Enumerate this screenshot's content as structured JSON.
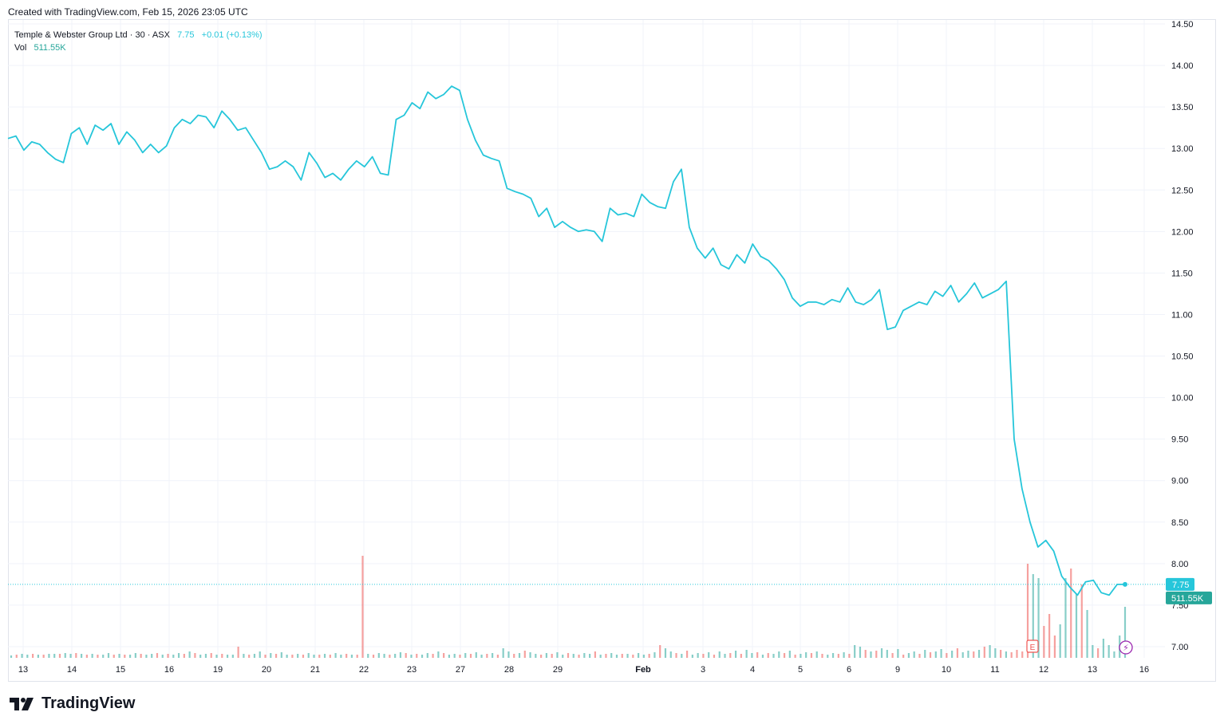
{
  "header": {
    "created": "Created with TradingView.com, Feb 15, 2026 23:05 UTC"
  },
  "legend": {
    "symbol": "Temple & Webster Group Ltd",
    "interval": "30",
    "exchange": "ASX",
    "price": "7.75",
    "change": "+0.01",
    "change_pct": "(+0.13%)",
    "vol_label": "Vol",
    "vol_value": "511.55K"
  },
  "branding": {
    "name": "TradingView"
  },
  "colors": {
    "line": "#26c6da",
    "vol_up": "#26a69a",
    "vol_down": "#ef5350",
    "grid": "#f0f3fa"
  },
  "price_label": "7.75",
  "volume_label": "511.55K",
  "chart_data": {
    "type": "line",
    "title": "Temple & Webster Group Ltd · 30 · ASX",
    "ylabel": "",
    "xlabel": "",
    "ylim": [
      6.9,
      14.5
    ],
    "y_ticks": [
      "14.50",
      "14.00",
      "13.50",
      "13.00",
      "12.50",
      "12.00",
      "11.50",
      "11.00",
      "10.50",
      "10.00",
      "9.50",
      "9.00",
      "8.50",
      "8.00",
      "7.50",
      "7.00"
    ],
    "x_ticks": [
      "13",
      "14",
      "15",
      "16",
      "19",
      "20",
      "21",
      "22",
      "23",
      "27",
      "28",
      "29",
      "Feb",
      "3",
      "4",
      "5",
      "6",
      "9",
      "10",
      "11",
      "12",
      "13",
      "16"
    ],
    "series": [
      {
        "values": [
          13.12,
          13.15,
          12.98,
          13.08,
          13.05,
          12.95,
          12.87,
          12.83,
          13.18,
          13.25,
          13.05,
          13.28,
          13.22,
          13.3,
          13.05,
          13.2,
          13.1,
          12.95,
          13.05,
          12.95,
          13.03,
          13.25,
          13.35,
          13.3,
          13.4,
          13.38,
          13.25,
          13.45,
          13.35,
          13.22,
          13.25,
          13.1,
          12.95,
          12.75,
          12.78,
          12.85,
          12.78,
          12.62,
          12.95,
          12.82,
          12.65,
          12.7,
          12.62,
          12.75,
          12.85,
          12.78,
          12.9,
          12.7,
          12.68,
          13.35,
          13.4,
          13.55,
          13.48,
          13.68,
          13.6,
          13.65,
          13.75,
          13.7,
          13.35,
          13.1,
          12.92,
          12.88,
          12.85,
          12.52,
          12.48,
          12.45,
          12.4,
          12.18,
          12.28,
          12.05,
          12.12,
          12.05,
          12.0,
          12.02,
          12.0,
          11.88,
          12.28,
          12.2,
          12.22,
          12.18,
          12.45,
          12.35,
          12.3,
          12.28,
          12.6,
          12.75,
          12.05,
          11.8,
          11.68,
          11.8,
          11.6,
          11.55,
          11.72,
          11.62,
          11.85,
          11.7,
          11.65,
          11.55,
          11.42,
          11.2,
          11.1,
          11.15,
          11.15,
          11.12,
          11.18,
          11.15,
          11.32,
          11.15,
          11.12,
          11.18,
          11.3,
          10.82,
          10.85,
          11.05,
          11.1,
          11.15,
          11.12,
          11.28,
          11.22,
          11.35,
          11.15,
          11.25,
          11.38,
          11.2,
          11.25,
          11.3,
          11.4,
          9.5,
          8.9,
          8.5,
          8.2,
          8.28,
          8.15,
          7.85,
          7.72,
          7.62,
          7.78,
          7.8,
          7.65,
          7.62,
          7.75,
          7.75
        ]
      }
    ],
    "volume_label": "Vol",
    "volume": {
      "values": [
        3,
        4,
        5,
        4,
        5,
        4,
        4,
        5,
        5,
        5,
        6,
        5,
        6,
        5,
        4,
        5,
        4,
        4,
        6,
        4,
        5,
        4,
        4,
        6,
        5,
        4,
        5,
        6,
        4,
        5,
        4,
        6,
        5,
        8,
        6,
        4,
        5,
        6,
        4,
        5,
        4,
        4,
        14,
        5,
        4,
        5,
        8,
        4,
        6,
        5,
        7,
        4,
        4,
        5,
        4,
        6,
        4,
        4,
        5,
        4,
        6,
        4,
        5,
        4,
        4,
        128,
        5,
        4,
        6,
        5,
        4,
        5,
        7,
        6,
        4,
        5,
        4,
        6,
        5,
        8,
        6,
        4,
        5,
        4,
        6,
        5,
        7,
        4,
        5,
        6,
        4,
        12,
        8,
        5,
        6,
        9,
        7,
        5,
        4,
        6,
        5,
        7,
        4,
        6,
        5,
        4,
        6,
        5,
        8,
        4,
        5,
        6,
        4,
        5,
        5,
        4,
        6,
        4,
        5,
        7,
        16,
        12,
        8,
        6,
        5,
        9,
        4,
        6,
        5,
        7,
        4,
        8,
        5,
        6,
        9,
        5,
        10,
        6,
        7,
        4,
        6,
        5,
        8,
        6,
        9,
        4,
        5,
        7,
        6,
        8,
        5,
        4,
        6,
        5,
        7,
        5,
        16,
        14,
        10,
        8,
        9,
        12,
        10,
        6,
        11,
        4,
        6,
        8,
        5,
        10,
        7,
        8,
        11,
        6,
        9,
        12,
        7,
        9,
        8,
        10,
        14,
        16,
        12,
        10,
        8,
        7,
        10,
        8,
        118,
        105,
        100,
        40,
        55,
        28,
        42,
        100,
        112,
        80,
        92,
        60,
        16,
        12,
        24,
        16,
        8,
        28,
        64
      ],
      "directions": [
        "u",
        "d",
        "u",
        "u",
        "d",
        "u",
        "d",
        "u",
        "u",
        "d",
        "u",
        "u",
        "d",
        "u",
        "d",
        "u",
        "d",
        "u",
        "u",
        "d",
        "u",
        "d",
        "u",
        "u",
        "d",
        "u",
        "u",
        "d",
        "u",
        "d",
        "u",
        "u",
        "d",
        "u",
        "d",
        "u",
        "u",
        "d",
        "u",
        "d",
        "u",
        "u",
        "d",
        "u",
        "d",
        "u",
        "u",
        "d",
        "u",
        "d",
        "u",
        "u",
        "d",
        "u",
        "d",
        "u",
        "u",
        "d",
        "u",
        "d",
        "u",
        "u",
        "d",
        "u",
        "d",
        "d",
        "u",
        "d",
        "u",
        "u",
        "d",
        "u",
        "u",
        "d",
        "u",
        "d",
        "u",
        "u",
        "d",
        "u",
        "d",
        "u",
        "u",
        "d",
        "u",
        "d",
        "u",
        "u",
        "d",
        "u",
        "d",
        "u",
        "u",
        "d",
        "u",
        "d",
        "u",
        "u",
        "d",
        "u",
        "d",
        "u",
        "u",
        "d",
        "u",
        "d",
        "u",
        "u",
        "d",
        "u",
        "d",
        "u",
        "u",
        "d",
        "u",
        "d",
        "u",
        "u",
        "d",
        "u",
        "d",
        "u",
        "u",
        "d",
        "u",
        "d",
        "u",
        "u",
        "d",
        "u",
        "d",
        "u",
        "u",
        "d",
        "u",
        "d",
        "u",
        "u",
        "d",
        "u",
        "d",
        "u",
        "u",
        "d",
        "u",
        "d",
        "u",
        "u",
        "d",
        "u",
        "d",
        "u",
        "u",
        "d",
        "u",
        "d",
        "u",
        "u",
        "d",
        "u",
        "d",
        "u",
        "u",
        "d",
        "u",
        "d",
        "u",
        "u",
        "d",
        "u",
        "d",
        "u",
        "u",
        "d",
        "u",
        "d",
        "u",
        "u",
        "d",
        "u",
        "d",
        "u",
        "u",
        "d",
        "u",
        "d",
        "d",
        "d",
        "d",
        "u",
        "u",
        "d",
        "d",
        "d",
        "u",
        "u",
        "d",
        "u",
        "d",
        "u",
        "u",
        "d",
        "u",
        "u"
      ]
    },
    "markers": {
      "earnings": "E",
      "flash": "⚡"
    },
    "grid": true,
    "legend_position": "top-left"
  }
}
